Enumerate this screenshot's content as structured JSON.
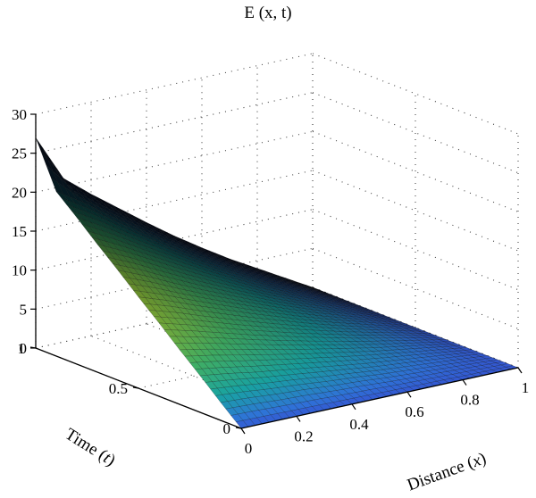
{
  "chart_data": {
    "type": "surface",
    "title": "E (x, t)",
    "xlabel_prefix": "Distance (",
    "xlabel_var": "x",
    "xlabel_suffix": ")",
    "ylabel_prefix": "Time (",
    "ylabel_var": "t",
    "ylabel_suffix": ")",
    "zlabel": "",
    "xlim": [
      0,
      1
    ],
    "ylim": [
      0,
      1
    ],
    "zlim": [
      0,
      30
    ],
    "x_ticks": [
      "0",
      "0.2",
      "0.4",
      "0.6",
      "0.8",
      "1"
    ],
    "y_ticks": [
      "0",
      "0.5",
      "1"
    ],
    "z_ticks": [
      "0",
      "5",
      "10",
      "15",
      "20",
      "25",
      "30"
    ],
    "grid": true,
    "colormap": [
      "#3b30c8",
      "#2f73d9",
      "#19a8a8",
      "#47c16e",
      "#a8d83a"
    ],
    "surface": {
      "x": [
        0,
        0.1,
        0.2,
        0.3,
        0.4,
        0.5,
        0.6,
        0.7,
        0.8,
        0.9,
        1.0
      ],
      "t": [
        0,
        0.1,
        0.2,
        0.3,
        0.4,
        0.5,
        0.6,
        0.7,
        0.8,
        0.9,
        1.0
      ],
      "z": [
        [
          0.0,
          0.0,
          0.0,
          0.0,
          0.0,
          0.0,
          0.0,
          0.0,
          0.0,
          0.0,
          0.0
        ],
        [
          2.3,
          2.1,
          1.8,
          1.6,
          1.3,
          1.1,
          0.8,
          0.6,
          0.4,
          0.2,
          0.0
        ],
        [
          4.7,
          4.2,
          3.6,
          3.1,
          2.6,
          2.1,
          1.6,
          1.2,
          0.8,
          0.4,
          0.0
        ],
        [
          7.0,
          6.3,
          5.5,
          4.7,
          3.9,
          3.2,
          2.5,
          1.8,
          1.2,
          0.6,
          0.0
        ],
        [
          9.4,
          8.4,
          7.3,
          6.2,
          5.2,
          4.2,
          3.3,
          2.4,
          1.6,
          0.8,
          0.0
        ],
        [
          11.7,
          10.5,
          9.1,
          7.8,
          6.5,
          5.3,
          4.1,
          3.0,
          2.0,
          1.0,
          0.0
        ],
        [
          14.1,
          12.6,
          10.9,
          9.3,
          7.8,
          6.3,
          4.9,
          3.6,
          2.4,
          1.2,
          0.0
        ],
        [
          16.4,
          14.7,
          12.8,
          10.9,
          9.1,
          7.4,
          5.7,
          4.2,
          2.8,
          1.4,
          0.0
        ],
        [
          18.8,
          16.8,
          14.6,
          12.5,
          10.4,
          8.4,
          6.6,
          4.8,
          3.2,
          1.6,
          0.0
        ],
        [
          21.1,
          18.9,
          16.4,
          14.0,
          11.7,
          9.5,
          7.4,
          5.4,
          3.6,
          1.8,
          0.0
        ],
        [
          27.0,
          21.0,
          18.2,
          15.6,
          13.0,
          10.5,
          8.2,
          6.0,
          4.0,
          2.0,
          0.0
        ]
      ]
    }
  }
}
